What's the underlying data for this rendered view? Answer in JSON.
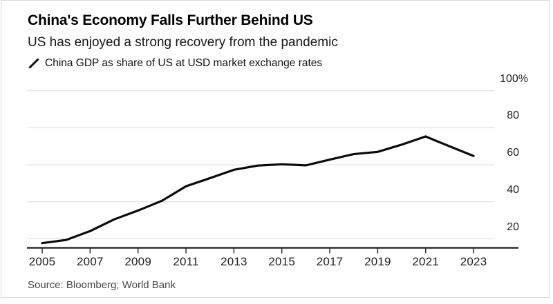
{
  "header": {
    "title": "China's Economy Falls Further Behind US",
    "subtitle": "US has enjoyed a strong recovery from the pandemic",
    "legend_label": "China GDP as share of US at USD market exchange rates",
    "legend_marker": "diagonal-line-slash"
  },
  "footer": {
    "source": "Source: Bloomberg; World Bank"
  },
  "colors": {
    "background": "#ffffff",
    "line": "#0a0a0a",
    "grid": "#d9d9d9",
    "axis": "#2e2e2e",
    "title_text": "#000000",
    "label_text": "#1f1f1f",
    "source_text": "#454545",
    "card_border": "#d8d8d8"
  },
  "chart_data": {
    "type": "line",
    "title": "China's Economy Falls Further Behind US",
    "subtitle": "US has enjoyed a strong recovery from the pandemic",
    "xlabel": "",
    "ylabel": "",
    "unit": "%",
    "grid": "horizontal",
    "legend_position": "top-left",
    "xlim": [
      2004.4,
      2024.8
    ],
    "ylim": [
      15,
      100
    ],
    "xticks": [
      2005,
      2007,
      2009,
      2011,
      2013,
      2015,
      2017,
      2019,
      2021,
      2023
    ],
    "xtick_labels": [
      "2005",
      "2007",
      "2009",
      "2011",
      "2013",
      "2015",
      "2017",
      "2019",
      "2021",
      "2023"
    ],
    "yticks": [
      20,
      40,
      60,
      80,
      100
    ],
    "ytick_labels": [
      "20",
      "40",
      "60",
      "80",
      "100%"
    ],
    "series": [
      {
        "name": "China GDP as share of US at USD market exchange rates",
        "x": [
          2005,
          2006,
          2007,
          2008,
          2009,
          2010,
          2011,
          2012,
          2013,
          2014,
          2015,
          2016,
          2017,
          2018,
          2019,
          2020,
          2021,
          2022,
          2023
        ],
        "values": [
          17.7,
          19.4,
          24.2,
          30.5,
          35.3,
          40.6,
          48.4,
          52.8,
          57.3,
          59.6,
          60.3,
          59.7,
          62.8,
          65.8,
          67.0,
          70.9,
          75.3,
          70.0,
          64.8
        ]
      }
    ]
  }
}
